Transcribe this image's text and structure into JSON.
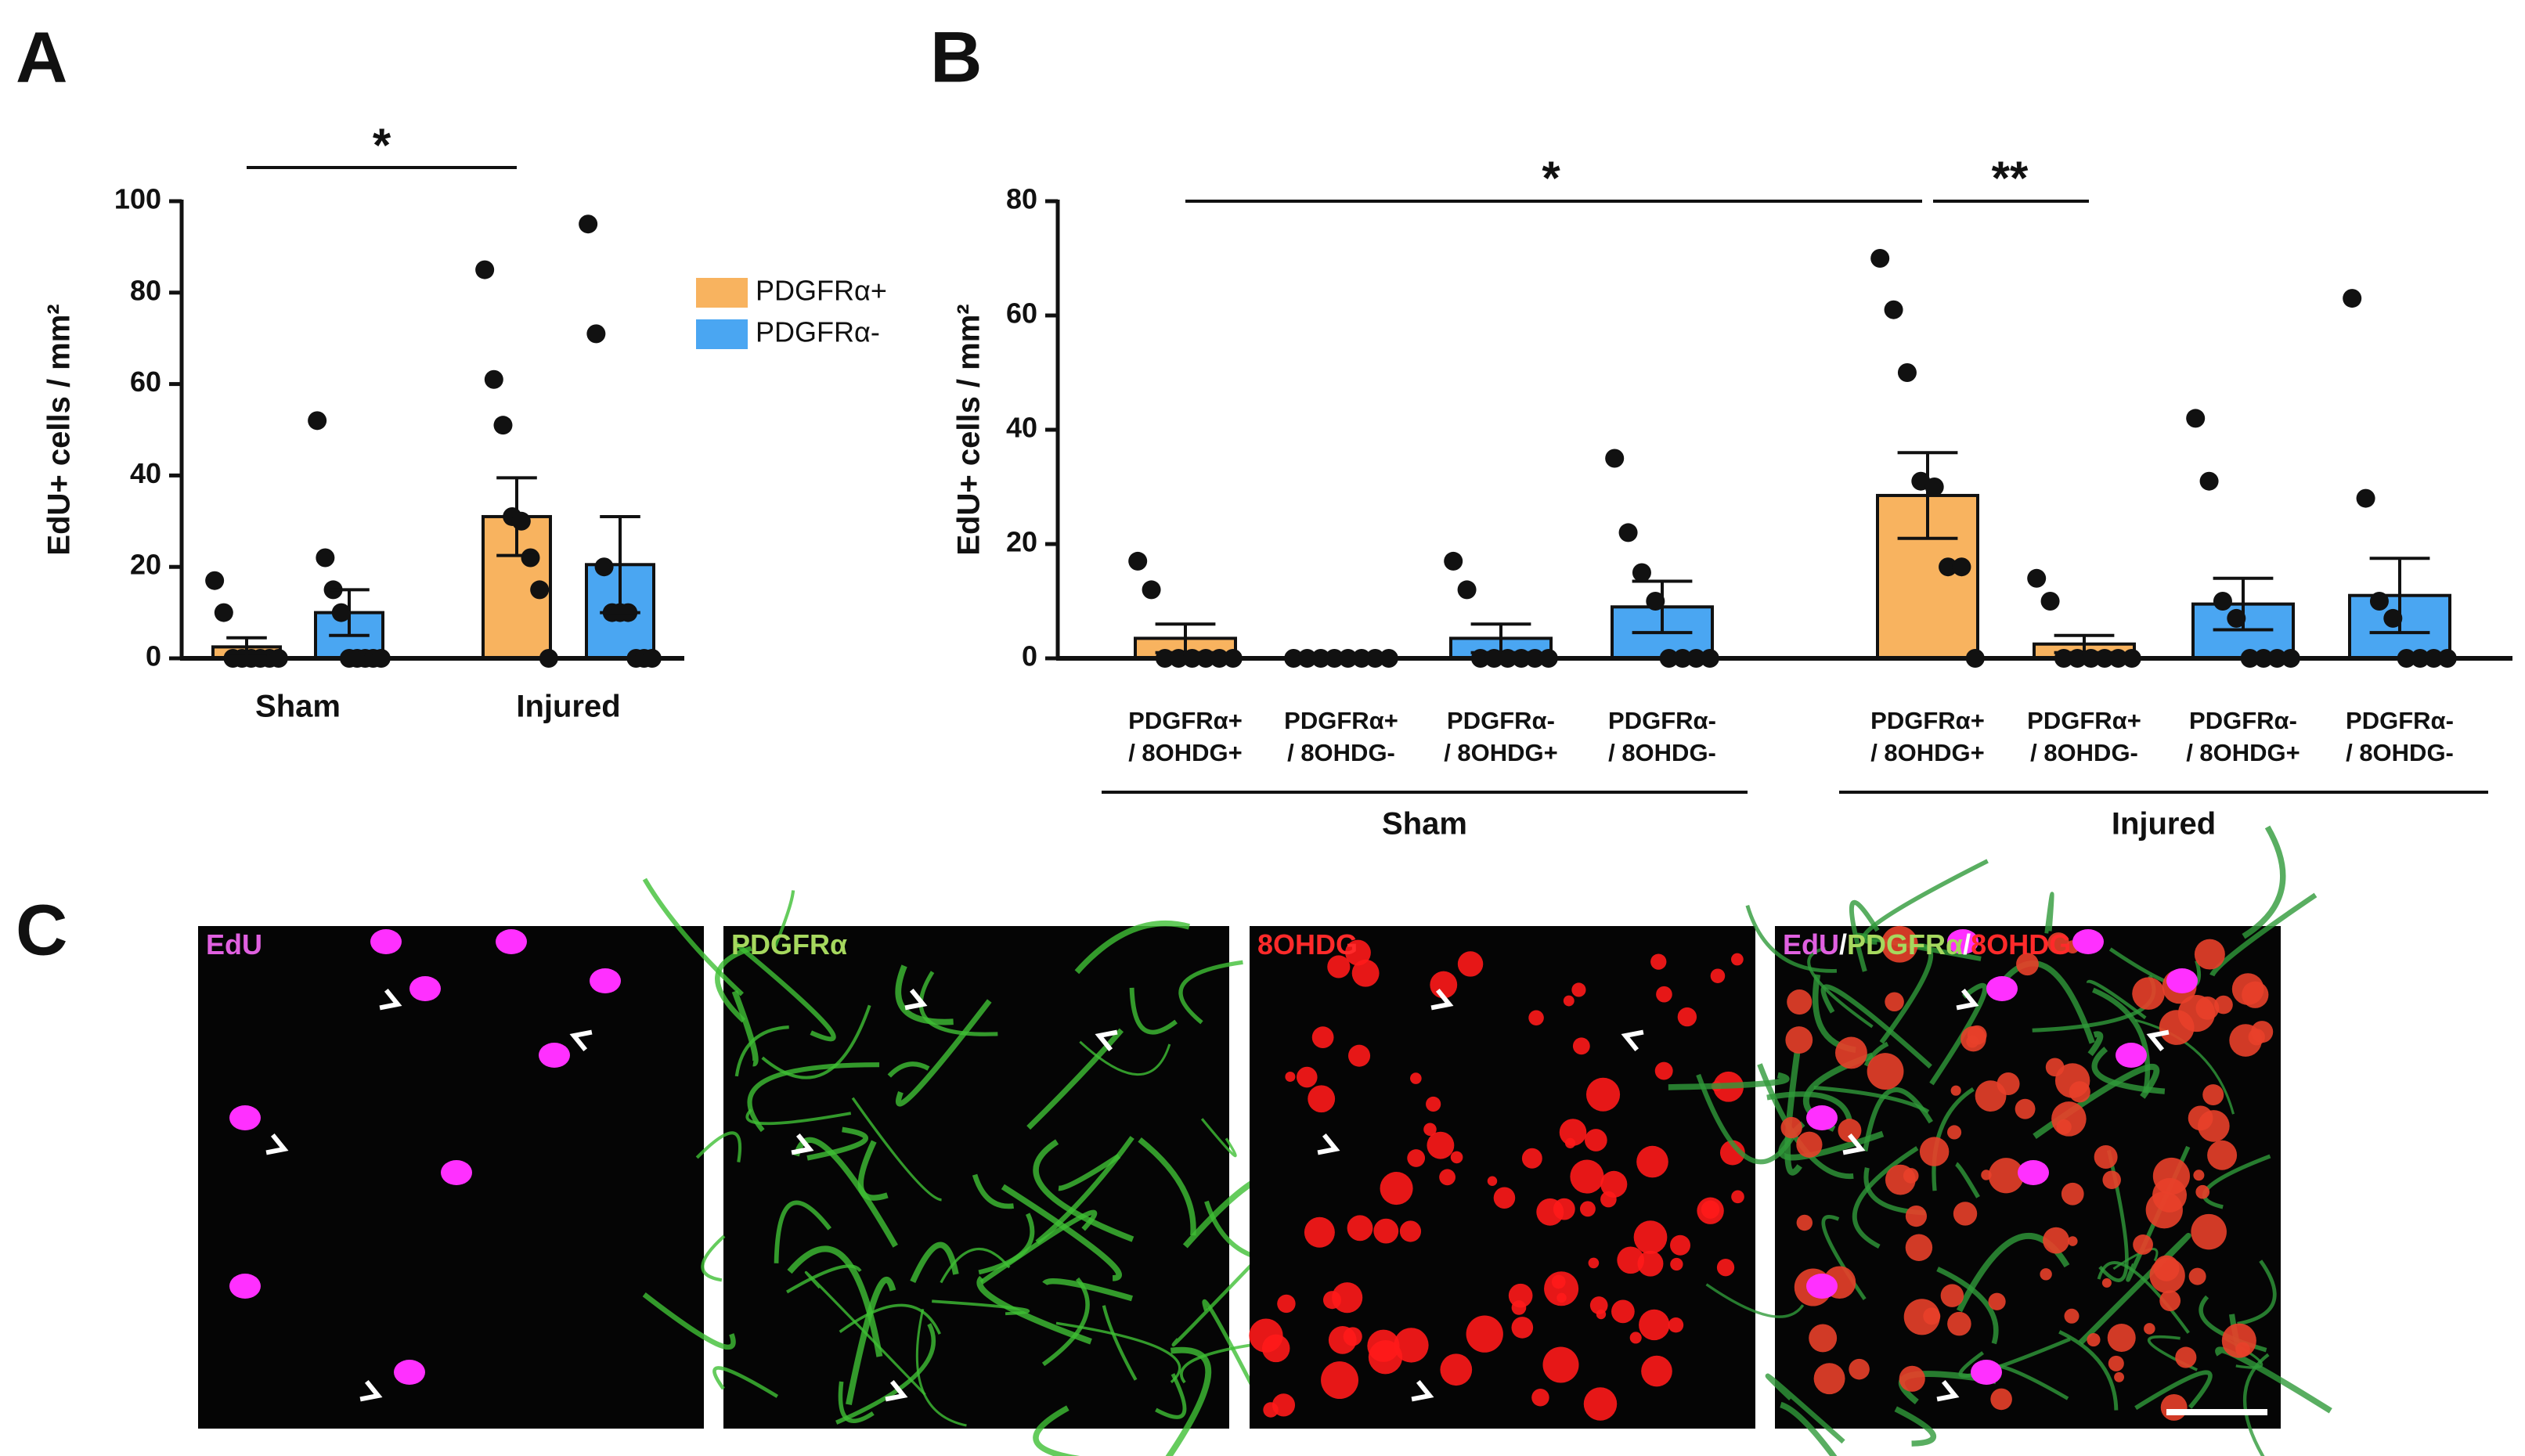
{
  "panels": [
    "A",
    "B",
    "C"
  ],
  "chart_data": [
    {
      "type": "bar",
      "ylabel": "EdU+ cells / mm²",
      "categories": [
        "Sham",
        "Injured"
      ],
      "series": [
        {
          "name": "PDGFRα+",
          "color": "#f8b35f",
          "values": [
            2.5,
            31
          ],
          "errors": [
            2,
            8.5
          ],
          "points": [
            [
              17,
              10,
              0,
              0,
              0,
              0,
              0,
              0
            ],
            [
              85,
              61,
              51,
              31,
              30,
              22,
              15,
              0
            ]
          ]
        },
        {
          "name": "PDGFRα-",
          "color": "#4aa6f2",
          "values": [
            10,
            20.5
          ],
          "errors": [
            5,
            10.5
          ],
          "points": [
            [
              52,
              22,
              15,
              10,
              0,
              0,
              0,
              0,
              0
            ],
            [
              95,
              71,
              20,
              10,
              10,
              10,
              0,
              0,
              0
            ]
          ]
        }
      ],
      "ylim": [
        0,
        100
      ],
      "yticks": [
        0,
        20,
        40,
        60,
        80,
        100
      ],
      "annotations": [
        "*"
      ]
    },
    {
      "type": "bar",
      "ylabel": "EdU+ cells / mm²",
      "categories": [
        [
          "PDGFRα+",
          "/ 8OHDG+"
        ],
        [
          "PDGFRα+",
          "/ 8OHDG-"
        ],
        [
          "PDGFRα-",
          "/ 8OHDG+"
        ],
        [
          "PDGFRα-",
          "/ 8OHDG-"
        ],
        [
          "PDGFRα+",
          "/ 8OHDG+"
        ],
        [
          "PDGFRα+",
          "/ 8OHDG-"
        ],
        [
          "PDGFRα-",
          "/ 8OHDG+"
        ],
        [
          "PDGFRα-",
          "/ 8OHDG-"
        ]
      ],
      "groups": [
        "Sham",
        "Injured"
      ],
      "values": [
        3.5,
        0,
        3.5,
        9,
        28.5,
        2.5,
        9.5,
        11
      ],
      "errors": [
        2.5,
        0,
        2.5,
        4.5,
        7.5,
        1.5,
        4.5,
        6.5
      ],
      "colors": [
        "#f8b35f",
        "#f8b35f",
        "#4aa6f2",
        "#4aa6f2",
        "#f8b35f",
        "#f8b35f",
        "#4aa6f2",
        "#4aa6f2"
      ],
      "points": [
        [
          17,
          12,
          0,
          0,
          0,
          0,
          0,
          0
        ],
        [
          0,
          0,
          0,
          0,
          0,
          0,
          0,
          0
        ],
        [
          17,
          12,
          0,
          0,
          0,
          0,
          0,
          0
        ],
        [
          35,
          22,
          15,
          10,
          0,
          0,
          0,
          0
        ],
        [
          70,
          61,
          50,
          31,
          30,
          16,
          16,
          0
        ],
        [
          14,
          10,
          0,
          0,
          0,
          0,
          0,
          0
        ],
        [
          42,
          31,
          10,
          7,
          0,
          0,
          0,
          0
        ],
        [
          63,
          28,
          10,
          7,
          0,
          0,
          0,
          0
        ]
      ],
      "ylim": [
        0,
        80
      ],
      "yticks": [
        0,
        20,
        40,
        60,
        80
      ],
      "annotations": [
        "*",
        "**"
      ]
    }
  ],
  "images": [
    {
      "labels": [
        {
          "text": "EdU",
          "color": "#e060e0"
        }
      ]
    },
    {
      "labels": [
        {
          "text": "PDGFRα",
          "color": "#a6d85e"
        }
      ]
    },
    {
      "labels": [
        {
          "text": "8OHDG",
          "color": "#ff2a2a"
        }
      ]
    },
    {
      "labels": [
        {
          "text": "EdU",
          "color": "#e060e0"
        },
        {
          "text": "/",
          "color": "#ffffff"
        },
        {
          "text": "PDGFRα",
          "color": "#a6d85e"
        },
        {
          "text": "/",
          "color": "#ffffff"
        },
        {
          "text": "8OHDG",
          "color": "#ff2a2a"
        }
      ]
    }
  ]
}
